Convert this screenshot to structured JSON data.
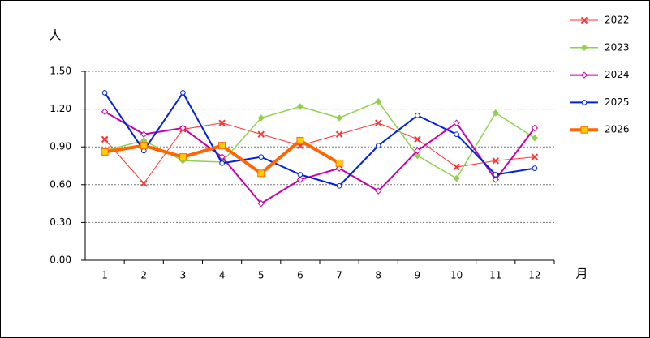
{
  "chart_data": {
    "type": "line",
    "y_label": "人",
    "x_label": "月",
    "categories": [
      "1",
      "2",
      "3",
      "4",
      "5",
      "6",
      "7",
      "8",
      "9",
      "10",
      "11",
      "12"
    ],
    "ylim": [
      0,
      1.5
    ],
    "yticks": [
      {
        "value": 0,
        "label": "0.00"
      },
      {
        "value": 0.3,
        "label": "0.30"
      },
      {
        "value": 0.6,
        "label": "0.60"
      },
      {
        "value": 0.9,
        "label": "0.90"
      },
      {
        "value": 1.2,
        "label": "1.20"
      },
      {
        "value": 1.5,
        "label": "1.50"
      }
    ],
    "grid": true,
    "legend": "right",
    "series": [
      {
        "name": "2022",
        "color": "#ff3333",
        "marker": "x",
        "line_width": 1,
        "values": [
          0.96,
          0.61,
          1.04,
          1.09,
          1.0,
          0.91,
          1.0,
          1.09,
          0.96,
          0.74,
          0.79,
          0.82
        ]
      },
      {
        "name": "2023",
        "color": "#92d050",
        "marker": "diamond-filled",
        "line_width": 1.5,
        "values": [
          0.87,
          0.95,
          0.79,
          0.78,
          1.13,
          1.22,
          1.13,
          1.26,
          0.83,
          0.65,
          1.17,
          0.97
        ]
      },
      {
        "name": "2024",
        "color": "#cc00aa",
        "marker": "diamond-open",
        "line_width": 2,
        "values": [
          1.18,
          1.0,
          1.05,
          0.82,
          0.45,
          0.64,
          0.73,
          0.55,
          0.87,
          1.09,
          0.64,
          1.05
        ]
      },
      {
        "name": "2025",
        "color": "#0022dd",
        "marker": "circle-open",
        "line_width": 2,
        "values": [
          1.33,
          0.87,
          1.33,
          0.77,
          0.82,
          0.68,
          0.59,
          0.91,
          1.15,
          1.0,
          0.68,
          0.73
        ]
      },
      {
        "name": "2026",
        "color": "#ff6600",
        "marker": "square-filled",
        "line_width": 4,
        "values": [
          0.86,
          0.91,
          0.82,
          0.91,
          0.69,
          0.95,
          0.77,
          null,
          null,
          null,
          null,
          null
        ]
      }
    ]
  }
}
